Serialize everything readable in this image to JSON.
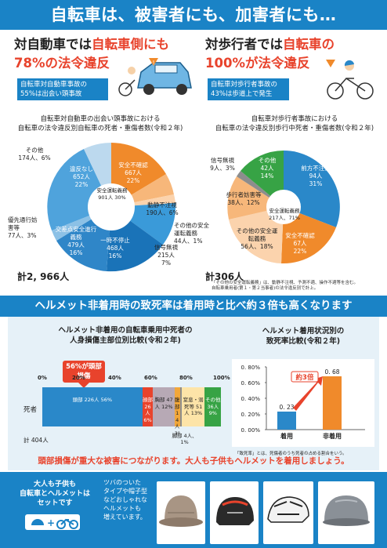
{
  "banner": "自転車は、被害者にも、加害者にも…",
  "left": {
    "headline_1a": "対自動車では",
    "headline_1b": "自転車側にも",
    "headline_2": "78%の法令違反",
    "box_line1": "自転車対自動車事故の",
    "box_line2": "55%は出会い頭事故",
    "caption1": "自転車対自動車の出会い頭事故における",
    "caption2": "自転車の法令違反別自転車の死者・重傷者数(令和２年)",
    "total": "計2, 966人",
    "center_label": "安全運転義務 901人 30%",
    "slices": [
      {
        "name": "安全不確認",
        "count": "667人",
        "pct": "22%"
      },
      {
        "name": "動静不注視",
        "count": "190人、6%"
      },
      {
        "name": "その他の安全運転義務",
        "count": "44人、1%"
      },
      {
        "name": "信号無視",
        "count": "215人",
        "pct": "7%"
      },
      {
        "name": "一時不停止",
        "count": "468人",
        "pct": "16%"
      },
      {
        "name": "交差点安全進行義務",
        "count": "479人",
        "pct": "16%"
      },
      {
        "name": "優先通行妨害等",
        "count": "77人、3%"
      },
      {
        "name": "違反なし",
        "count": "652人",
        "pct": "22%"
      },
      {
        "name": "その他",
        "count": "174人、6%"
      }
    ]
  },
  "right": {
    "headline_1a": "対歩行者では",
    "headline_1b": "自転車の",
    "headline_2": "100%が法令違反",
    "box_line1": "自転車対歩行者事故の",
    "box_line2": "43%は歩道上で発生",
    "caption1": "自転車対歩行者事故における",
    "caption2": "自転車の法令違反別歩行中死者・重傷者数(令和２年)",
    "total": "計306人",
    "center_label": "安全運転義務 217人、71%",
    "slices": [
      {
        "name": "前方不注意",
        "count": "94人",
        "pct": "31%"
      },
      {
        "name": "安全不確認",
        "count": "67人",
        "pct": "22%"
      },
      {
        "name": "その他の安全運転義務",
        "count": "56人、18%"
      },
      {
        "name": "歩行者妨害等",
        "count": "38人、12%"
      },
      {
        "name": "信号無視",
        "count": "9人、3%"
      },
      {
        "name": "その他",
        "count": "42人",
        "pct": "14%"
      }
    ],
    "note1": "「その他の安全運転義務」は、動静不注視、予測不適、操作不適等を含む。",
    "note2": "自転車乗用者(第１・第２当事者)の法令違反別で計上。"
  },
  "band": "ヘルメット非着用時の致死率は着用時と比べ約３倍も高くなります",
  "bar_panel": {
    "title1": "ヘルメット非着用の自転車乗用中死者の",
    "title2": "人身損傷主部位別比較(令和２年)",
    "callout": "56%が頭部損傷",
    "row_label": "死者",
    "total": "計 404人",
    "ticks": [
      "0%",
      "20%",
      "40%",
      "60%",
      "80%",
      "100%"
    ],
    "segments": [
      {
        "label": "頭部 226人 56%",
        "pct": 56,
        "color": "#2a88c9"
      },
      {
        "label": "顔部 26人 6%",
        "pct": 6,
        "color": "#e8432c"
      },
      {
        "label": "胸部 47人 12%",
        "pct": 12,
        "color": "#b7a9b5"
      },
      {
        "label": "腹部 14人 3%",
        "pct": 3,
        "color": "#f2a73a"
      },
      {
        "label": "脚部 4人、1%",
        "pct": 1,
        "color": "#8d8d8d"
      },
      {
        "label": "窒息・溺死等 51人 13%",
        "pct": 13,
        "color": "#fde4a8"
      },
      {
        "label": "その他 36人 9%",
        "pct": 9,
        "color": "#37a345"
      }
    ]
  },
  "fatality": {
    "title1": "ヘルメット着用状況別の",
    "title2": "致死率比較(令和２年)",
    "yticks": [
      "0. 80%",
      "0. 60%",
      "0. 40%",
      "0. 20%",
      "0. 00%"
    ],
    "callout": "約3倍",
    "note": "「致死率」とは、死傷者のうち死者の占める割合をいう。",
    "chart_data": {
      "type": "bar",
      "categories": [
        "着用",
        "非着用"
      ],
      "values": [
        0.23,
        0.68
      ],
      "value_labels": [
        "0. 23",
        "0. 68"
      ],
      "ylim": [
        0,
        0.8
      ],
      "colors": [
        "#2a88c9",
        "#f08a2b"
      ]
    }
  },
  "message": "頭部損傷が重大な被害につながります。大人も子供もヘルメットを着用しましょう。",
  "bottom": {
    "line1": "大人も子供も",
    "line2": "自転車とヘルメットは",
    "line3": "セットです",
    "side1": "ツバのついた",
    "side2": "タイプや帽子型",
    "side3": "などおしゃれな",
    "side4": "ヘルメットも",
    "side5": "増えています。"
  }
}
